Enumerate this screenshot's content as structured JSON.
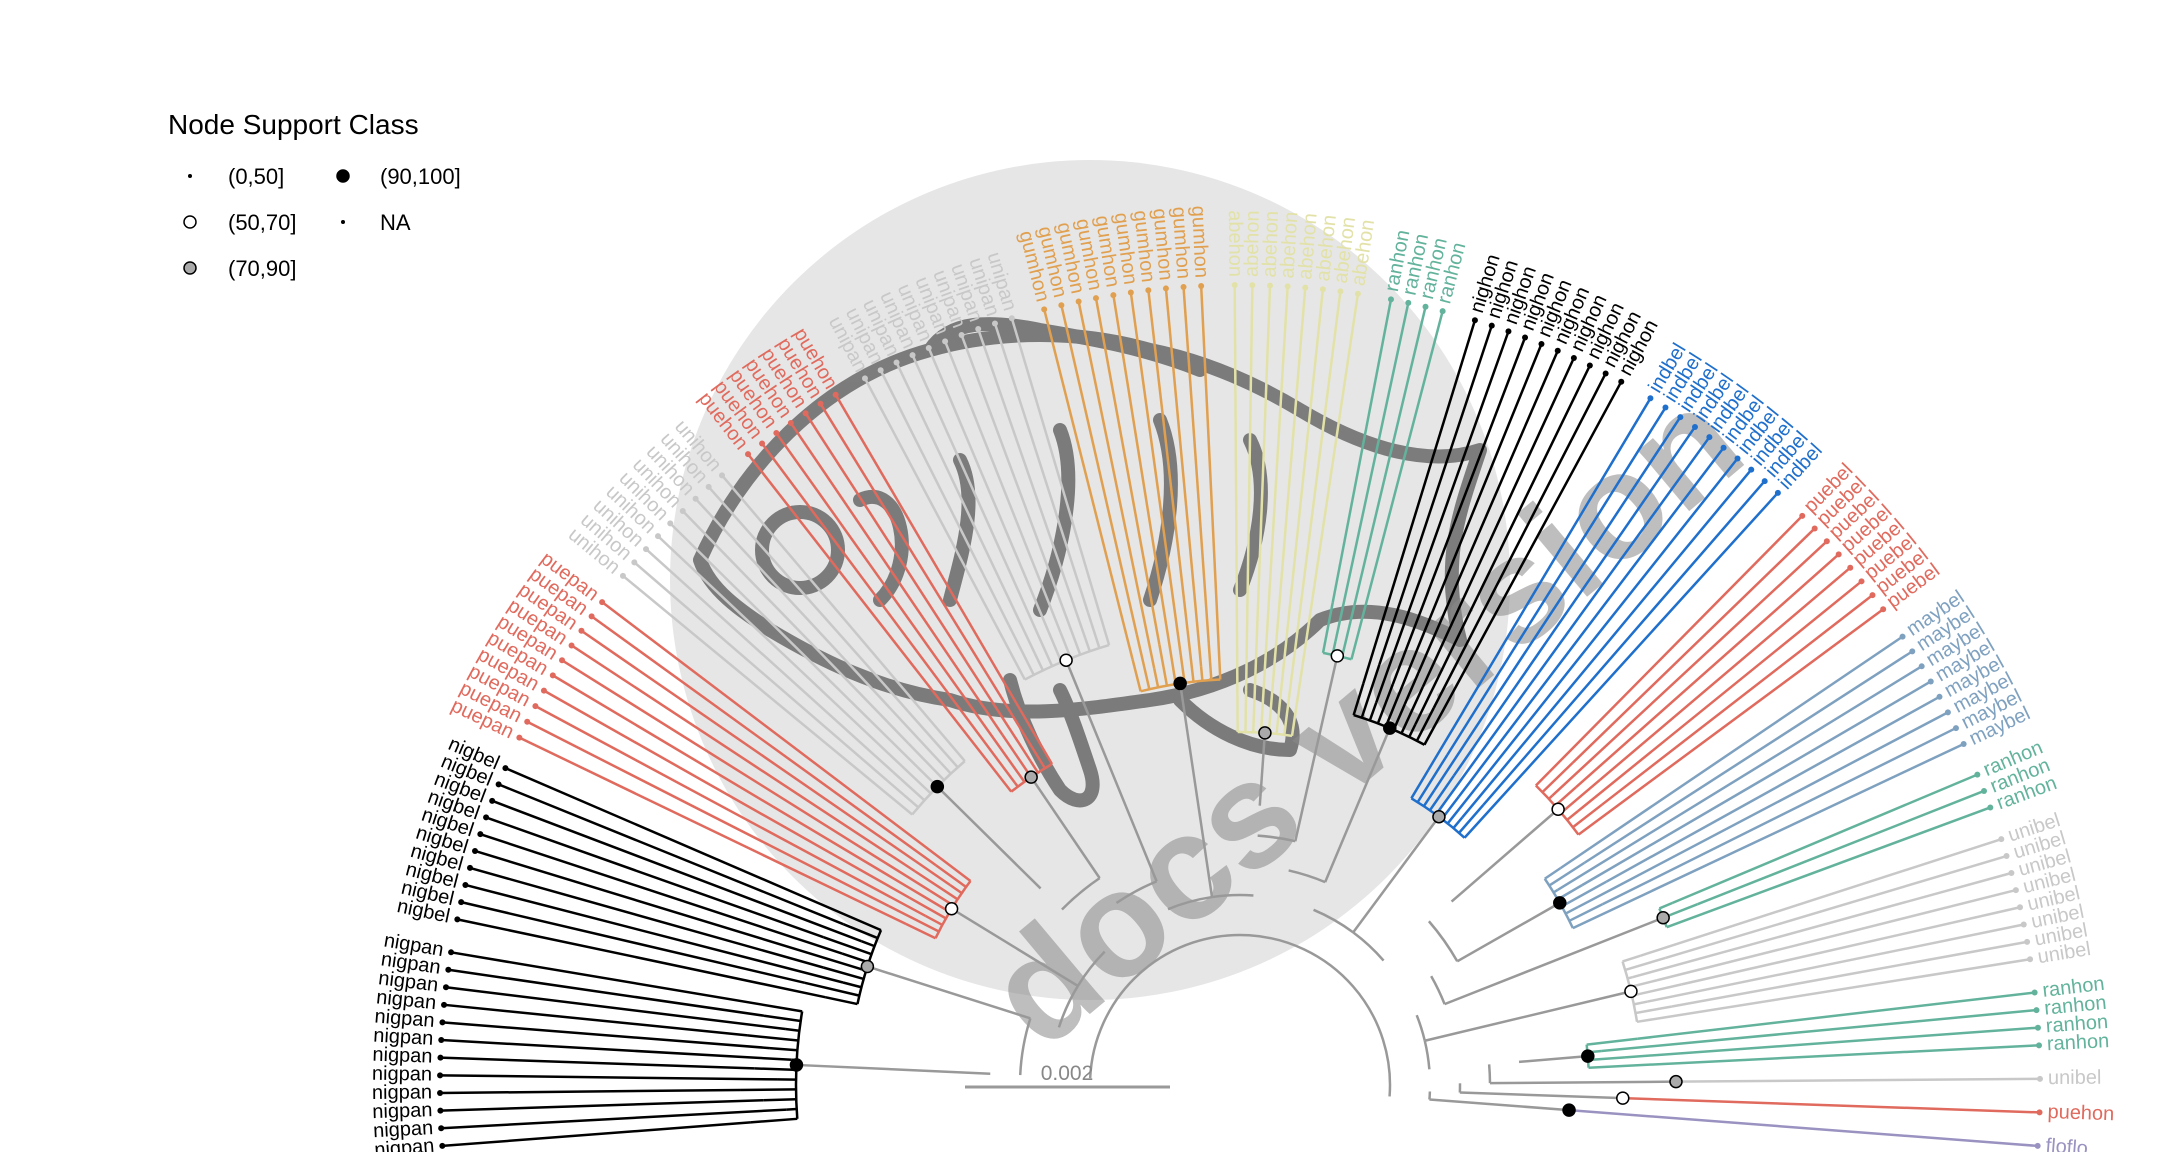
{
  "legend": {
    "title": "Node Support Class",
    "items": [
      {
        "label": "(0,50]",
        "shape": "tiny-dot",
        "fill": "#000000"
      },
      {
        "label": "(50,70]",
        "shape": "circle",
        "fill": "#ffffff"
      },
      {
        "label": "(70,90]",
        "shape": "circle",
        "fill": "#aaaaaa"
      },
      {
        "label": "(90,100]",
        "shape": "circle",
        "fill": "#000000"
      },
      {
        "label": "NA",
        "shape": "tiny-dot",
        "fill": "#000000"
      }
    ]
  },
  "scale_bar": {
    "label": "0.002"
  },
  "watermark": {
    "text": "docs version",
    "icon": "hamlet-fish-icon"
  },
  "clades": [
    {
      "label": "floflo",
      "color": "#9a92c0",
      "count": 1
    },
    {
      "label": "puehon",
      "color": "#e06a5d",
      "count": 1
    },
    {
      "label": "unibel",
      "color": "#c8c8c8",
      "count": 1
    },
    {
      "label": "ranhon",
      "color": "#63b39c",
      "count": 4
    },
    {
      "label": "unibel",
      "color": "#c8c8c8",
      "count": 8
    },
    {
      "label": "ranhon",
      "color": "#63b39c",
      "count": 3
    },
    {
      "label": "maybel",
      "color": "#7fa1c0",
      "count": 8
    },
    {
      "label": "puebel",
      "color": "#e06a5d",
      "count": 8
    },
    {
      "label": "indbel",
      "color": "#1f6fcc",
      "count": 10
    },
    {
      "label": "nighon",
      "color": "#000000",
      "count": 10
    },
    {
      "label": "ranhon",
      "color": "#63b39c",
      "count": 4
    },
    {
      "label": "abehon",
      "color": "#e2e2a8",
      "count": 8
    },
    {
      "label": "gumhon",
      "color": "#e0a050",
      "count": 10
    },
    {
      "label": "unipan",
      "color": "#c8c8c8",
      "count": 10
    },
    {
      "label": "puehon",
      "color": "#e06a5d",
      "count": 7
    },
    {
      "label": "unihon",
      "color": "#c8c8c8",
      "count": 9
    },
    {
      "label": "puepan",
      "color": "#e06a5d",
      "count": 10
    },
    {
      "label": "nigbel",
      "color": "#000000",
      "count": 10
    },
    {
      "label": "nigpan",
      "color": "#000000",
      "count": 12
    }
  ]
}
